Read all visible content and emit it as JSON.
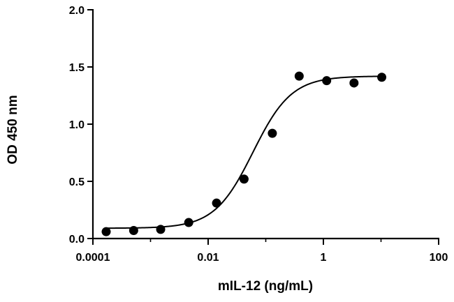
{
  "chart_data": {
    "type": "scatter",
    "xlabel": "mIL-12 (ng/mL)",
    "ylabel": "OD 450 nm",
    "x_scale": "log",
    "xlim": [
      0.0001,
      100
    ],
    "ylim": [
      0,
      2.0
    ],
    "x_ticks": [
      0.0001,
      0.01,
      1,
      100
    ],
    "x_tick_labels": [
      "0.0001",
      "0.01",
      "1",
      "100"
    ],
    "y_ticks": [
      0,
      0.5,
      1.0,
      1.5,
      2.0
    ],
    "y_tick_labels": [
      "0.0",
      "0.5",
      "1.0",
      "1.5",
      "2.0"
    ],
    "grid": false,
    "points": [
      {
        "x": 0.00017,
        "y": 0.06
      },
      {
        "x": 0.00051,
        "y": 0.07
      },
      {
        "x": 0.0015,
        "y": 0.08
      },
      {
        "x": 0.0046,
        "y": 0.14
      },
      {
        "x": 0.014,
        "y": 0.31
      },
      {
        "x": 0.042,
        "y": 0.52
      },
      {
        "x": 0.13,
        "y": 0.92
      },
      {
        "x": 0.38,
        "y": 1.42
      },
      {
        "x": 1.14,
        "y": 1.38
      },
      {
        "x": 3.4,
        "y": 1.36
      },
      {
        "x": 10.3,
        "y": 1.41
      }
    ],
    "fit": {
      "model": "4PL",
      "bottom": 0.09,
      "top": 1.42,
      "ec50": 0.06,
      "hill": 1.3,
      "x_range": [
        0.00017,
        10.3
      ]
    }
  }
}
